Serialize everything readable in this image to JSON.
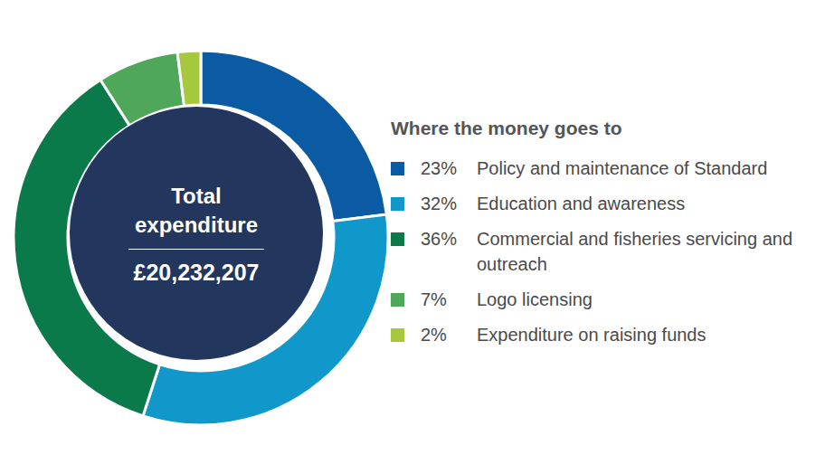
{
  "chart_data": {
    "type": "pie",
    "categories": [
      "Policy and maintenance of Standard",
      "Education and awareness",
      "Commercial and fisheries servicing and outreach",
      "Logo licensing",
      "Expenditure on raising funds"
    ],
    "values": [
      23,
      32,
      36,
      7,
      2
    ],
    "value_labels": [
      "23%",
      "32%",
      "36%",
      "7%",
      "2%"
    ],
    "colors": [
      "#0a5ba3",
      "#0f98c9",
      "#0a7a4a",
      "#4fa85a",
      "#a6c83c"
    ],
    "legend": "right",
    "legend_title": "Where the money goes to",
    "total_label": "Total expenditure",
    "total": {
      "value": 20232207,
      "label": "£20,232,207"
    }
  }
}
